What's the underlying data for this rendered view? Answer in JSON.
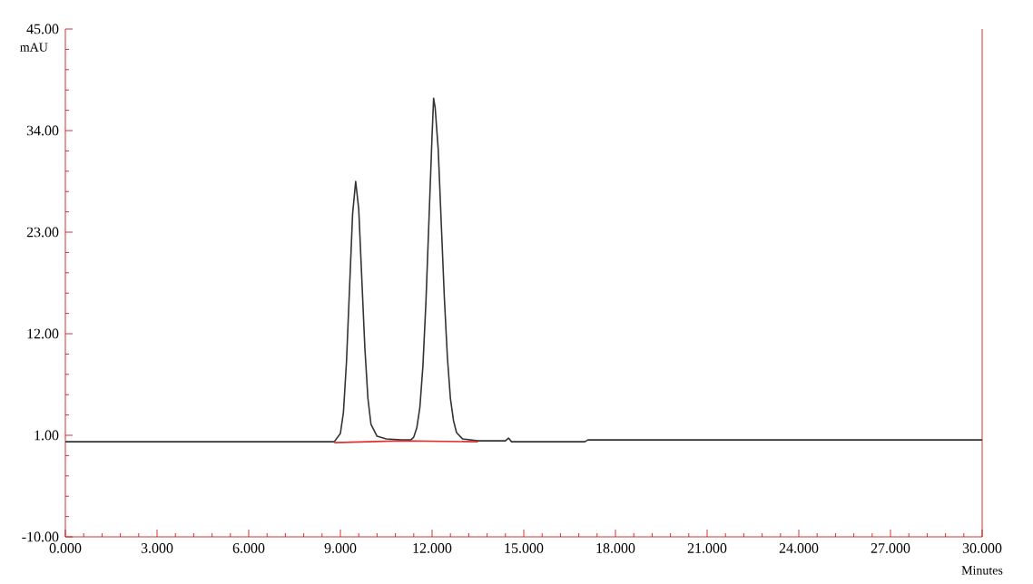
{
  "chart_data": {
    "type": "line",
    "xlabel": "Minutes",
    "ylabel": "mAU",
    "xlim": [
      0,
      30
    ],
    "ylim": [
      -10,
      45
    ],
    "xticks": [
      {
        "value": 0,
        "label": "0.000"
      },
      {
        "value": 3,
        "label": "3.000"
      },
      {
        "value": 6,
        "label": "6.000"
      },
      {
        "value": 9,
        "label": "9.000"
      },
      {
        "value": 12,
        "label": "12.000"
      },
      {
        "value": 15,
        "label": "15.000"
      },
      {
        "value": 18,
        "label": "18.000"
      },
      {
        "value": 21,
        "label": "21.000"
      },
      {
        "value": 24,
        "label": "24.000"
      },
      {
        "value": 27,
        "label": "27.000"
      },
      {
        "value": 30,
        "label": "30.000"
      }
    ],
    "yticks": [
      {
        "value": -10,
        "label": "-10.00"
      },
      {
        "value": 1,
        "label": "1.00"
      },
      {
        "value": 12,
        "label": "12.00"
      },
      {
        "value": 23,
        "label": "23.00"
      },
      {
        "value": 34,
        "label": "34.00"
      },
      {
        "value": 45,
        "label": "45.00"
      }
    ],
    "grid": false,
    "series": [
      {
        "color": "#333333",
        "x": [
          0,
          7.5,
          8.8,
          9.0,
          9.1,
          9.2,
          9.3,
          9.4,
          9.5,
          9.6,
          9.7,
          9.8,
          9.9,
          10.0,
          10.2,
          10.5,
          11.0,
          11.3,
          11.4,
          11.5,
          11.6,
          11.7,
          11.8,
          11.9,
          12.0,
          12.05,
          12.1,
          12.2,
          12.3,
          12.4,
          12.5,
          12.6,
          12.7,
          12.8,
          13.0,
          13.5,
          14.4,
          14.5,
          14.6,
          17.0,
          17.1,
          30
        ],
        "values": [
          0.3,
          0.3,
          0.3,
          1.2,
          3.5,
          9.0,
          17.0,
          25.0,
          28.5,
          25.5,
          18.0,
          10.5,
          5.0,
          2.2,
          0.9,
          0.6,
          0.5,
          0.5,
          0.8,
          1.8,
          4.0,
          8.5,
          15.5,
          24.5,
          33.5,
          37.5,
          36.5,
          32.0,
          24.0,
          16.0,
          9.5,
          5.0,
          2.6,
          1.3,
          0.6,
          0.4,
          0.4,
          0.7,
          0.3,
          0.3,
          0.5,
          0.5
        ]
      },
      {
        "color": "#e03030",
        "x": [
          8.8,
          11.0,
          13.5
        ],
        "values": [
          0.2,
          0.4,
          0.3
        ]
      }
    ]
  }
}
